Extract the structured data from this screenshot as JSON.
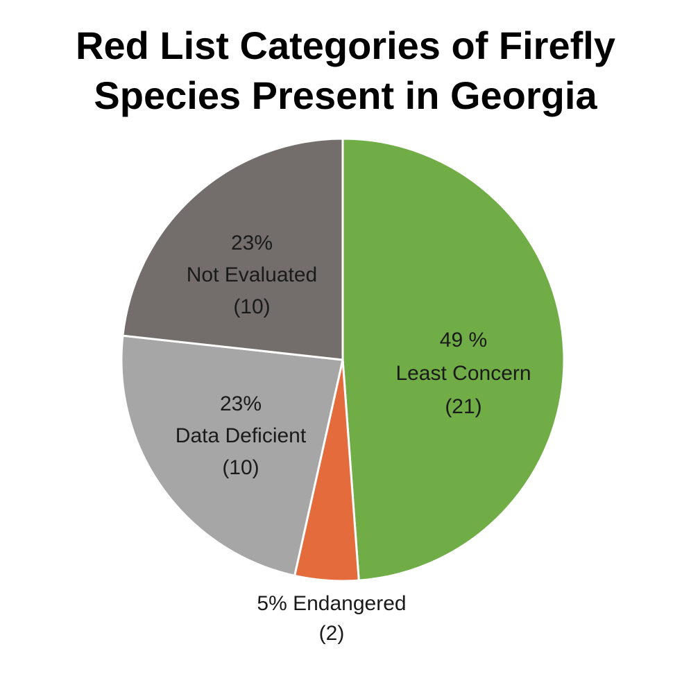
{
  "title": {
    "line1": "Red List Categories of Firefly",
    "line2": "Species Present in Georgia"
  },
  "chart_data": {
    "type": "pie",
    "title": "Red List Categories of Firefly Species Present in Georgia",
    "start_angle_deg": 0,
    "direction": "clockwise",
    "slices": [
      {
        "name": "Least Concern",
        "value": 21,
        "percent_label": "49 %",
        "count_label": "(21)",
        "color": "#70ad47"
      },
      {
        "name": "Endangered",
        "value": 2,
        "percent_label": "5%",
        "count_label": "(2)",
        "color": "#e46c3c"
      },
      {
        "name": "Data Deficient",
        "value": 10,
        "percent_label": "23%",
        "count_label": "(10)",
        "color": "#a6a6a6"
      },
      {
        "name": "Not Evaluated",
        "value": 10,
        "percent_label": "23%",
        "count_label": "(10)",
        "color": "#736e6c"
      }
    ],
    "legend": "none",
    "labels": "on-slice"
  }
}
